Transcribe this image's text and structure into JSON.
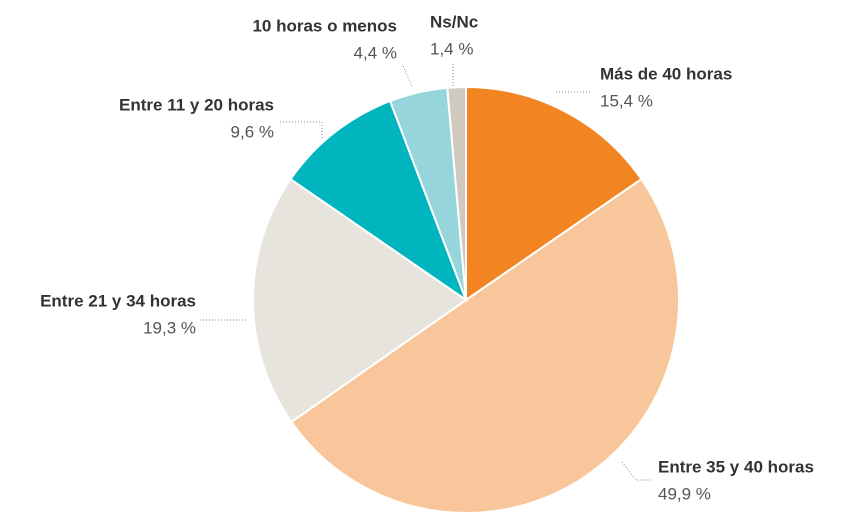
{
  "chart_data": {
    "type": "pie",
    "categories": [
      "Más de 40 horas",
      "Entre 35 y 40 horas",
      "Entre 21 y 34 horas",
      "Entre 11 y 20 horas",
      "10 horas o menos",
      "Ns/Nc"
    ],
    "values": [
      15.4,
      49.9,
      19.3,
      9.6,
      4.4,
      1.4
    ],
    "value_labels": [
      "15,4 %",
      "49,9 %",
      "19,3 %",
      "9,6 %",
      "4,4 %",
      "1,4 %"
    ],
    "colors": [
      "#f28421",
      "#f9c59a",
      "#e6e4dc",
      "#00b5be",
      "#97d5dd",
      "#cfcabd"
    ]
  }
}
